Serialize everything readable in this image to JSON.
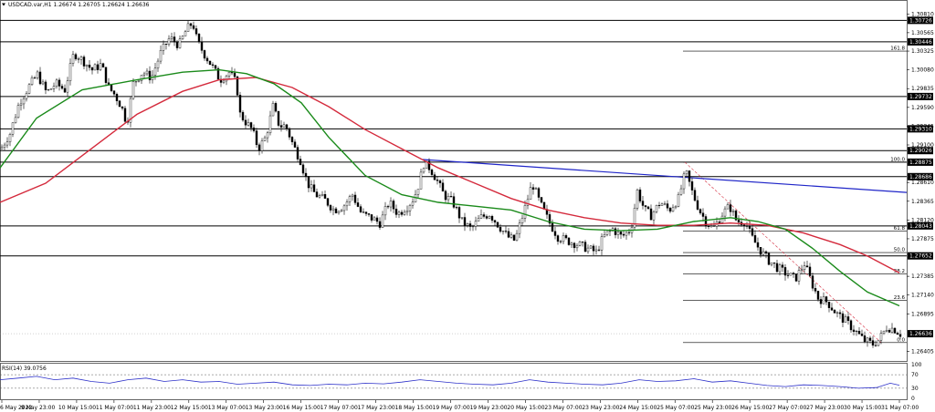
{
  "header": {
    "symbol_line": "USDCAD.var,H1  1.26674 1.26705 1.26624 1.26636",
    "menu_icon": "triangle-down-icon"
  },
  "chart_data": {
    "type": "candlestick",
    "symbol": "USDCAD.var",
    "timeframe": "H1",
    "ohlc": {
      "open": 1.26674,
      "high": 1.26705,
      "low": 1.26624,
      "close": 1.26636
    },
    "ylim": [
      1.2628,
      1.3098
    ],
    "price_ticks": [
      "1.30810",
      "1.30565",
      "1.30325",
      "1.30080",
      "1.29835",
      "1.29590",
      "1.29345",
      "1.29100",
      "1.28610",
      "1.28365",
      "1.28120",
      "1.27875",
      "1.27385",
      "1.27140",
      "1.26895",
      "1.26405"
    ],
    "price_tick_values": [
      1.3081,
      1.30565,
      1.30325,
      1.3008,
      1.29835,
      1.2959,
      1.29345,
      1.291,
      1.2861,
      1.28365,
      1.2812,
      1.27875,
      1.27385,
      1.2714,
      1.26895,
      1.26405
    ],
    "x_ticks": [
      "6 May 2022",
      "9 May 23:00",
      "10 May 15:00",
      "11 May 07:00",
      "11 May 23:00",
      "12 May 15:00",
      "13 May 07:00",
      "13 May 23:00",
      "16 May 15:00",
      "17 May 07:00",
      "17 May 23:00",
      "18 May 15:00",
      "19 May 07:00",
      "19 May 23:00",
      "20 May 15:00",
      "23 May 07:00",
      "23 May 23:00",
      "24 May 15:00",
      "25 May 07:00",
      "25 May 23:00",
      "26 May 15:00",
      "27 May 07:00",
      "27 May 23:00",
      "30 May 15:00",
      "31 May 07:00"
    ],
    "horizontal_levels": [
      {
        "label": "1.30726",
        "value": 1.30726
      },
      {
        "label": "1.30446",
        "value": 1.30446
      },
      {
        "label": "1.29732",
        "value": 1.29732
      },
      {
        "label": "1.29310",
        "value": 1.2931
      },
      {
        "label": "1.29026",
        "value": 1.29026
      },
      {
        "label": "1.28875",
        "value": 1.28875
      },
      {
        "label": "1.28686",
        "value": 1.28686
      },
      {
        "label": "1.28043",
        "value": 1.28043
      },
      {
        "label": "1.27652",
        "value": 1.27652
      }
    ],
    "current_price_label": "1.26636",
    "current_price": 1.26636,
    "fibonacci": [
      {
        "label": "161.8",
        "value": 1.30325
      },
      {
        "label": "100.0",
        "value": 1.28875
      },
      {
        "label": "61.8",
        "value": 1.27975
      },
      {
        "label": "50.0",
        "value": 1.27695
      },
      {
        "label": "38.2",
        "value": 1.27415
      },
      {
        "label": "23.6",
        "value": 1.27069
      },
      {
        "label": "0.0",
        "value": 1.2652
      }
    ],
    "trendline": {
      "color": "#1f25c8",
      "from": {
        "x": "18 May 15:00",
        "y": 1.2891
      },
      "to": {
        "x": "31 May 07:00",
        "y": 1.2848
      }
    },
    "close_path": [
      [
        0,
        1.2905
      ],
      [
        10,
        1.2925
      ],
      [
        20,
        1.2965
      ],
      [
        30,
        1.2985
      ],
      [
        40,
        1.3002
      ],
      [
        50,
        1.2978
      ],
      [
        60,
        1.299
      ],
      [
        70,
        1.2982
      ],
      [
        80,
        1.303
      ],
      [
        90,
        1.302
      ],
      [
        100,
        1.3008
      ],
      [
        110,
        1.3015
      ],
      [
        118,
        1.2985
      ],
      [
        125,
        1.2975
      ],
      [
        132,
        1.296
      ],
      [
        138,
        1.2938
      ],
      [
        145,
        1.299
      ],
      [
        155,
        1.3005
      ],
      [
        165,
        1.2998
      ],
      [
        175,
        1.303
      ],
      [
        185,
        1.305
      ],
      [
        195,
        1.304
      ],
      [
        203,
        1.306
      ],
      [
        210,
        1.307
      ],
      [
        215,
        1.3045
      ],
      [
        222,
        1.303
      ],
      [
        230,
        1.3015
      ],
      [
        240,
        1.2995
      ],
      [
        250,
        1.3005
      ],
      [
        258,
        1.299
      ],
      [
        262,
        1.295
      ],
      [
        268,
        1.294
      ],
      [
        275,
        1.293
      ],
      [
        282,
        1.2905
      ],
      [
        290,
        1.292
      ],
      [
        298,
        1.296
      ],
      [
        305,
        1.2935
      ],
      [
        312,
        1.2935
      ],
      [
        320,
        1.291
      ],
      [
        328,
        1.289
      ],
      [
        333,
        1.287
      ],
      [
        338,
        1.2855
      ],
      [
        345,
        1.2845
      ],
      [
        355,
        1.2838
      ],
      [
        365,
        1.2825
      ],
      [
        375,
        1.283
      ],
      [
        385,
        1.2845
      ],
      [
        395,
        1.282
      ],
      [
        405,
        1.2815
      ],
      [
        415,
        1.2808
      ],
      [
        425,
        1.2835
      ],
      [
        435,
        1.282
      ],
      [
        445,
        1.283
      ],
      [
        452,
        1.284
      ],
      [
        458,
        1.286
      ],
      [
        463,
        1.2885
      ],
      [
        470,
        1.288
      ],
      [
        477,
        1.2865
      ],
      [
        485,
        1.2845
      ],
      [
        495,
        1.2835
      ],
      [
        505,
        1.281
      ],
      [
        515,
        1.28
      ],
      [
        525,
        1.2815
      ],
      [
        535,
        1.282
      ],
      [
        545,
        1.2805
      ],
      [
        555,
        1.279
      ],
      [
        563,
        1.2785
      ],
      [
        572,
        1.282
      ],
      [
        582,
        1.286
      ],
      [
        590,
        1.2835
      ],
      [
        600,
        1.281
      ],
      [
        610,
        1.279
      ],
      [
        620,
        1.2785
      ],
      [
        632,
        1.278
      ],
      [
        642,
        1.2775
      ],
      [
        652,
        1.277
      ],
      [
        660,
        1.279
      ],
      [
        670,
        1.28
      ],
      [
        680,
        1.279
      ],
      [
        690,
        1.28
      ],
      [
        697,
        1.285
      ],
      [
        705,
        1.2825
      ],
      [
        712,
        1.2818
      ],
      [
        722,
        1.2835
      ],
      [
        732,
        1.2825
      ],
      [
        742,
        1.284
      ],
      [
        750,
        1.2875
      ],
      [
        758,
        1.2845
      ],
      [
        765,
        1.2825
      ],
      [
        772,
        1.281
      ],
      [
        780,
        1.28
      ],
      [
        790,
        1.282
      ],
      [
        798,
        1.283
      ],
      [
        806,
        1.281
      ],
      [
        815,
        1.281
      ],
      [
        822,
        1.279
      ],
      [
        830,
        1.2775
      ],
      [
        840,
        1.276
      ],
      [
        850,
        1.275
      ],
      [
        860,
        1.2742
      ],
      [
        870,
        1.2735
      ],
      [
        880,
        1.2755
      ],
      [
        888,
        1.273
      ],
      [
        895,
        1.271
      ],
      [
        905,
        1.2705
      ],
      [
        915,
        1.269
      ],
      [
        925,
        1.268
      ],
      [
        935,
        1.2668
      ],
      [
        945,
        1.2655
      ],
      [
        955,
        1.265
      ],
      [
        962,
        1.2656
      ],
      [
        970,
        1.2672
      ],
      [
        978,
        1.267
      ],
      [
        985,
        1.26636
      ]
    ],
    "ma_green": {
      "color": "#1a8a1a",
      "points": [
        [
          0,
          1.288
        ],
        [
          40,
          1.2945
        ],
        [
          90,
          1.2982
        ],
        [
          150,
          1.2995
        ],
        [
          200,
          1.3005
        ],
        [
          240,
          1.3008
        ],
        [
          270,
          1.3003
        ],
        [
          300,
          1.299
        ],
        [
          330,
          1.2965
        ],
        [
          360,
          1.292
        ],
        [
          400,
          1.287
        ],
        [
          440,
          1.2845
        ],
        [
          480,
          1.2835
        ],
        [
          520,
          1.283
        ],
        [
          560,
          1.2825
        ],
        [
          600,
          1.281
        ],
        [
          640,
          1.28
        ],
        [
          680,
          1.2798
        ],
        [
          720,
          1.28
        ],
        [
          760,
          1.281
        ],
        [
          800,
          1.2815
        ],
        [
          830,
          1.281
        ],
        [
          860,
          1.28
        ],
        [
          890,
          1.2775
        ],
        [
          920,
          1.2745
        ],
        [
          950,
          1.2718
        ],
        [
          985,
          1.27
        ]
      ]
    },
    "ma_red": {
      "color": "#d42a3c",
      "points": [
        [
          0,
          1.2835
        ],
        [
          50,
          1.286
        ],
        [
          100,
          1.2905
        ],
        [
          150,
          1.295
        ],
        [
          200,
          1.298
        ],
        [
          240,
          1.2995
        ],
        [
          280,
          1.2998
        ],
        [
          320,
          1.2985
        ],
        [
          360,
          1.296
        ],
        [
          400,
          1.293
        ],
        [
          440,
          1.2905
        ],
        [
          480,
          1.288
        ],
        [
          520,
          1.286
        ],
        [
          560,
          1.284
        ],
        [
          600,
          1.2825
        ],
        [
          640,
          1.2815
        ],
        [
          680,
          1.2808
        ],
        [
          720,
          1.2805
        ],
        [
          760,
          1.2805
        ],
        [
          800,
          1.2808
        ],
        [
          840,
          1.2805
        ],
        [
          880,
          1.2795
        ],
        [
          920,
          1.278
        ],
        [
          950,
          1.2765
        ],
        [
          985,
          1.2743
        ]
      ]
    },
    "rsi": {
      "label": "RSI(14) 39.0756",
      "value": 39.0756,
      "ticks": [
        "100",
        "70",
        "30",
        "0"
      ],
      "tick_values": [
        100,
        70,
        30,
        0
      ],
      "points": [
        [
          0,
          55
        ],
        [
          20,
          60
        ],
        [
          40,
          65
        ],
        [
          60,
          55
        ],
        [
          80,
          60
        ],
        [
          100,
          50
        ],
        [
          120,
          45
        ],
        [
          140,
          55
        ],
        [
          160,
          60
        ],
        [
          180,
          50
        ],
        [
          200,
          55
        ],
        [
          220,
          48
        ],
        [
          240,
          50
        ],
        [
          260,
          42
        ],
        [
          280,
          45
        ],
        [
          300,
          48
        ],
        [
          320,
          40
        ],
        [
          340,
          38
        ],
        [
          360,
          42
        ],
        [
          380,
          40
        ],
        [
          400,
          45
        ],
        [
          420,
          43
        ],
        [
          440,
          48
        ],
        [
          460,
          55
        ],
        [
          480,
          50
        ],
        [
          500,
          45
        ],
        [
          520,
          42
        ],
        [
          540,
          40
        ],
        [
          560,
          45
        ],
        [
          580,
          55
        ],
        [
          600,
          48
        ],
        [
          620,
          45
        ],
        [
          640,
          42
        ],
        [
          660,
          40
        ],
        [
          680,
          45
        ],
        [
          700,
          55
        ],
        [
          720,
          50
        ],
        [
          740,
          52
        ],
        [
          760,
          58
        ],
        [
          780,
          48
        ],
        [
          800,
          52
        ],
        [
          820,
          45
        ],
        [
          840,
          38
        ],
        [
          860,
          35
        ],
        [
          880,
          40
        ],
        [
          900,
          38
        ],
        [
          920,
          35
        ],
        [
          940,
          30
        ],
        [
          960,
          32
        ],
        [
          975,
          45
        ],
        [
          985,
          39
        ]
      ]
    }
  }
}
